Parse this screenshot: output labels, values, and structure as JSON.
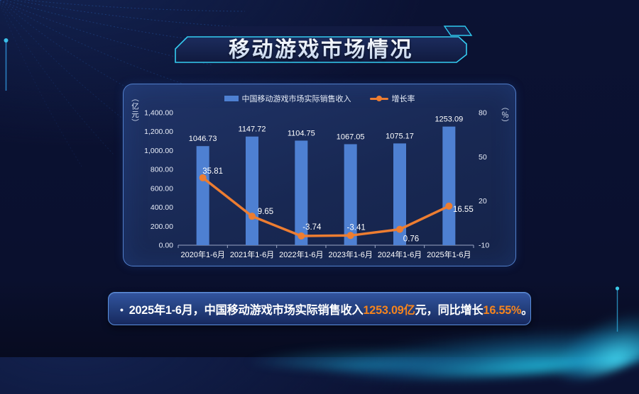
{
  "title": {
    "text": "移动游戏市场情况"
  },
  "chart_data": {
    "type": "bar",
    "subtype": "bar+line combo",
    "categories": [
      "2020年1-6月",
      "2021年1-6月",
      "2022年1-6月",
      "2023年1-6月",
      "2024年1-6月",
      "2025年1-6月"
    ],
    "series": [
      {
        "name": "中国移动游戏市场实际销售收入",
        "type": "bar",
        "axis": "left",
        "color": "#4e80d2",
        "values": [
          1046.73,
          1147.72,
          1104.75,
          1067.05,
          1075.17,
          1253.09
        ]
      },
      {
        "name": "增长率",
        "type": "line",
        "axis": "right",
        "color": "#ED7D31",
        "values": [
          35.81,
          9.65,
          -3.74,
          -3.41,
          0.76,
          16.55
        ]
      }
    ],
    "left_axis": {
      "title": "（亿元）",
      "min": 0,
      "max": 1400,
      "tick_labels": [
        "1,400.00",
        "1,200.00",
        "1,000.00",
        "800.00",
        "600.00",
        "400.00",
        "200.00",
        "0.00"
      ]
    },
    "right_axis": {
      "title": "（％）",
      "min": -10,
      "max": 80,
      "tick_labels": [
        "80",
        "50",
        "20",
        "-10"
      ]
    },
    "legend_position": "top",
    "grid": false
  },
  "summary": {
    "bullet": "•",
    "segments": [
      {
        "text": "2025年1-6月，中国移动游戏市场实际销售收入",
        "color": "white"
      },
      {
        "text": "1253.09亿",
        "color": "orange"
      },
      {
        "text": "元，同比增长",
        "color": "white"
      },
      {
        "text": "16.55%",
        "color": "orange"
      },
      {
        "text": "。",
        "color": "white"
      }
    ]
  },
  "colors": {
    "bar": "#4e80d2",
    "line": "#ED7D31",
    "accent_cyan": "#35cdf2",
    "panel_border": "#5c8ee0",
    "background": "#0b1233",
    "orange_text": "#f5841e"
  }
}
